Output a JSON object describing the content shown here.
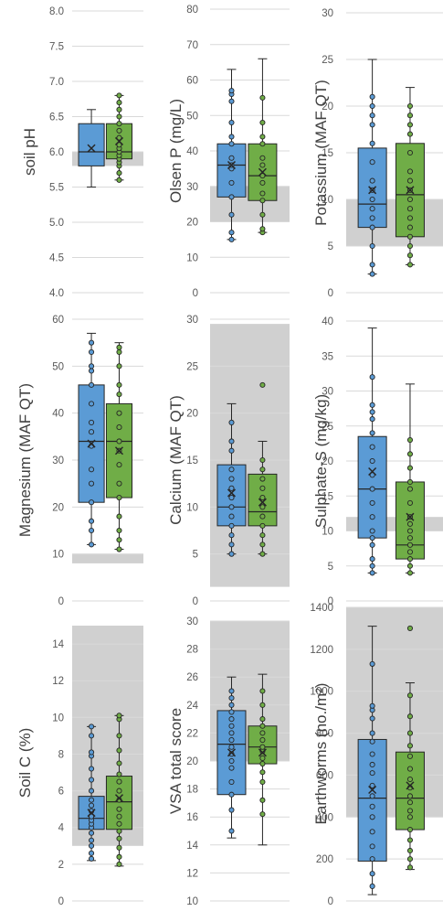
{
  "colors": {
    "blue": "#5b9bd5",
    "green": "#70ad47",
    "band": "#d0d0d0",
    "grid": "#d9d9d9",
    "text": "#595959"
  },
  "chart_data": [
    {
      "type": "box",
      "ylabel": "soil pH",
      "ylim": [
        4.0,
        8.0
      ],
      "yticks": [
        "4.0",
        "4.5",
        "5.0",
        "5.5",
        "6.0",
        "6.5",
        "7.0",
        "7.5",
        "8.0"
      ],
      "band": [
        5.8,
        6.0
      ],
      "series": [
        {
          "color": "blue",
          "min": 5.5,
          "q1": 5.8,
          "median": 6.0,
          "q3": 6.4,
          "max": 6.6,
          "mean": 6.05,
          "points": []
        },
        {
          "color": "green",
          "min": 5.6,
          "q1": 5.9,
          "median": 6.0,
          "q3": 6.4,
          "max": 6.8,
          "mean": 6.15,
          "points": [
            5.6,
            5.7,
            5.8,
            5.85,
            5.9,
            5.95,
            6.0,
            6.05,
            6.1,
            6.2,
            6.3,
            6.4,
            6.5,
            6.6,
            6.7,
            6.8
          ]
        }
      ]
    },
    {
      "type": "box",
      "ylabel": "Olsen P (mg/L)",
      "ylim": [
        0,
        80
      ],
      "yticks": [
        "0",
        "10",
        "20",
        "30",
        "40",
        "50",
        "60",
        "70",
        "80"
      ],
      "band": [
        20,
        30
      ],
      "series": [
        {
          "color": "blue",
          "min": 15,
          "q1": 27,
          "median": 36,
          "q3": 42,
          "max": 63,
          "mean": 36,
          "points": [
            15,
            17,
            22,
            27,
            31,
            35,
            36,
            38,
            42,
            44,
            48,
            54,
            56,
            57
          ]
        },
        {
          "color": "green",
          "min": 17,
          "q1": 26,
          "median": 33,
          "q3": 42,
          "max": 66,
          "mean": 34,
          "points": [
            17,
            18,
            22,
            26,
            28,
            31,
            33,
            36,
            38,
            42,
            44,
            48,
            55
          ]
        }
      ]
    },
    {
      "type": "box",
      "ylabel": "Potassium (MAF QT)",
      "ylim": [
        0,
        30
      ],
      "yticks": [
        "0",
        "5",
        "10",
        "15",
        "20",
        "25",
        "30"
      ],
      "band": [
        5,
        10
      ],
      "series": [
        {
          "color": "blue",
          "min": 2,
          "q1": 7,
          "median": 9.5,
          "q3": 15.5,
          "max": 25,
          "mean": 11,
          "points": [
            2,
            3,
            5,
            7,
            8,
            9,
            10,
            11,
            12,
            14,
            16,
            18,
            19,
            20,
            21
          ]
        },
        {
          "color": "green",
          "min": 3,
          "q1": 6,
          "median": 10.5,
          "q3": 16,
          "max": 22,
          "mean": 11,
          "points": [
            3,
            4,
            5,
            6,
            7,
            8,
            9,
            10,
            11,
            12,
            13,
            15,
            17,
            18,
            19,
            20
          ]
        }
      ]
    },
    {
      "type": "box",
      "ylabel": "Magnesium (MAF QT)",
      "ylim": [
        0,
        60
      ],
      "yticks": [
        "0",
        "10",
        "20",
        "30",
        "40",
        "50",
        "60"
      ],
      "band": [
        8,
        10
      ],
      "series": [
        {
          "color": "blue",
          "min": 12,
          "q1": 21,
          "median": 34,
          "q3": 46,
          "max": 57,
          "mean": 33.5,
          "points": [
            12,
            15,
            17,
            21,
            25,
            28,
            33,
            36,
            38,
            42,
            46,
            49,
            50,
            53,
            55
          ]
        },
        {
          "color": "green",
          "min": 11,
          "q1": 22,
          "median": 34,
          "q3": 42,
          "max": 55,
          "mean": 32,
          "points": [
            11,
            13,
            15,
            18,
            22,
            25,
            29,
            32,
            34,
            37,
            40,
            44,
            46,
            50,
            53,
            54
          ]
        }
      ]
    },
    {
      "type": "box",
      "ylabel": "Calcium (MAF QT)",
      "ylim": [
        0,
        30
      ],
      "yticks": [
        "0",
        "5",
        "10",
        "15",
        "20",
        "25",
        "30"
      ],
      "band": [
        1.5,
        29.5
      ],
      "series": [
        {
          "color": "blue",
          "min": 5,
          "q1": 8,
          "median": 10,
          "q3": 14.5,
          "max": 21,
          "mean": 11.5,
          "points": [
            5,
            6,
            7,
            8,
            9,
            10,
            11,
            12,
            13,
            14,
            16,
            17,
            19
          ]
        },
        {
          "color": "green",
          "min": 5,
          "q1": 8,
          "median": 9.5,
          "q3": 13.5,
          "max": 17,
          "mean": 10.5,
          "points": [
            5,
            6,
            7,
            8,
            9,
            10,
            11,
            12,
            13,
            14,
            15,
            23
          ]
        }
      ]
    },
    {
      "type": "box",
      "ylabel": "Sulphate-S (mg/kg)",
      "ylim": [
        0,
        40
      ],
      "yticks": [
        "0",
        "5",
        "10",
        "15",
        "20",
        "25",
        "30",
        "35",
        "40"
      ],
      "band": [
        10,
        12
      ],
      "series": [
        {
          "color": "blue",
          "min": 4,
          "q1": 9,
          "median": 16,
          "q3": 23.5,
          "max": 39,
          "mean": 18.5,
          "points": [
            4,
            5,
            6,
            8,
            9,
            10,
            12,
            14,
            16,
            18,
            20,
            22,
            24,
            26,
            27,
            28,
            32
          ]
        },
        {
          "color": "green",
          "min": 4,
          "q1": 6,
          "median": 8,
          "q3": 17,
          "max": 31,
          "mean": 12,
          "points": [
            4,
            5,
            6,
            7,
            8,
            9,
            10,
            11,
            12,
            14,
            16,
            17,
            19,
            21,
            23
          ]
        }
      ]
    },
    {
      "type": "box",
      "ylabel": "Soil C (%)",
      "ylim": [
        0,
        15
      ],
      "yticks": [
        "0",
        "2",
        "4",
        "6",
        "8",
        "10",
        "12",
        "14"
      ],
      "band": [
        3,
        15
      ],
      "series": [
        {
          "color": "blue",
          "min": 2.2,
          "q1": 3.9,
          "median": 4.5,
          "q3": 5.7,
          "max": 9.5,
          "mean": 4.8,
          "points": [
            2.3,
            2.6,
            3.0,
            3.3,
            3.7,
            4.0,
            4.2,
            4.4,
            4.6,
            4.9,
            5.2,
            5.5,
            6.0,
            6.6,
            7.2,
            7.9,
            8.1,
            9.0,
            9.5
          ]
        },
        {
          "color": "green",
          "min": 1.9,
          "q1": 3.9,
          "median": 5.4,
          "q3": 6.8,
          "max": 10.1,
          "mean": 5.6,
          "points": [
            2.0,
            2.4,
            2.9,
            3.4,
            3.8,
            4.2,
            4.6,
            5.0,
            5.5,
            6.0,
            6.5,
            6.9,
            7.5,
            8.2,
            9.0,
            9.9,
            10.1
          ]
        }
      ]
    },
    {
      "type": "box",
      "ylabel": "VSA total score",
      "ylim": [
        10,
        30
      ],
      "yticks": [
        "10",
        "12",
        "14",
        "16",
        "18",
        "20",
        "22",
        "24",
        "26",
        "28",
        "30"
      ],
      "band": [
        20,
        30
      ],
      "series": [
        {
          "color": "blue",
          "min": 14.5,
          "q1": 17.6,
          "median": 21.2,
          "q3": 23.6,
          "max": 26,
          "mean": 20.6,
          "points": [
            15,
            16.5,
            17.6,
            18.5,
            19.5,
            20,
            20.5,
            21,
            21.5,
            22,
            22.5,
            23,
            23.5,
            24,
            24.5,
            25
          ]
        },
        {
          "color": "green",
          "min": 14,
          "q1": 19.8,
          "median": 21,
          "q3": 22.5,
          "max": 26.2,
          "mean": 20.6,
          "points": [
            16.2,
            17.2,
            18.5,
            19.2,
            19.8,
            20.2,
            20.7,
            21,
            21.5,
            22,
            22.5,
            23,
            24,
            25
          ]
        }
      ]
    },
    {
      "type": "box",
      "ylabel": "Earthworms  (no./m²)",
      "ylim": [
        0,
        1400
      ],
      "yticks": [
        "0",
        "200",
        "400",
        "600",
        "800",
        "1000",
        "1200",
        "1400"
      ],
      "band": [
        400,
        1400
      ],
      "series": [
        {
          "color": "blue",
          "min": 30,
          "q1": 190,
          "median": 490,
          "q3": 770,
          "max": 1310,
          "mean": 530,
          "points": [
            70,
            130,
            200,
            260,
            330,
            400,
            450,
            500,
            550,
            610,
            650,
            700,
            760,
            800,
            870,
            910,
            930,
            1130
          ]
        },
        {
          "color": "green",
          "min": 150,
          "q1": 340,
          "median": 490,
          "q3": 710,
          "max": 1040,
          "mean": 550,
          "points": [
            160,
            200,
            240,
            290,
            340,
            400,
            430,
            470,
            500,
            540,
            580,
            630,
            690,
            740,
            800,
            880,
            980,
            1300
          ]
        }
      ]
    }
  ]
}
